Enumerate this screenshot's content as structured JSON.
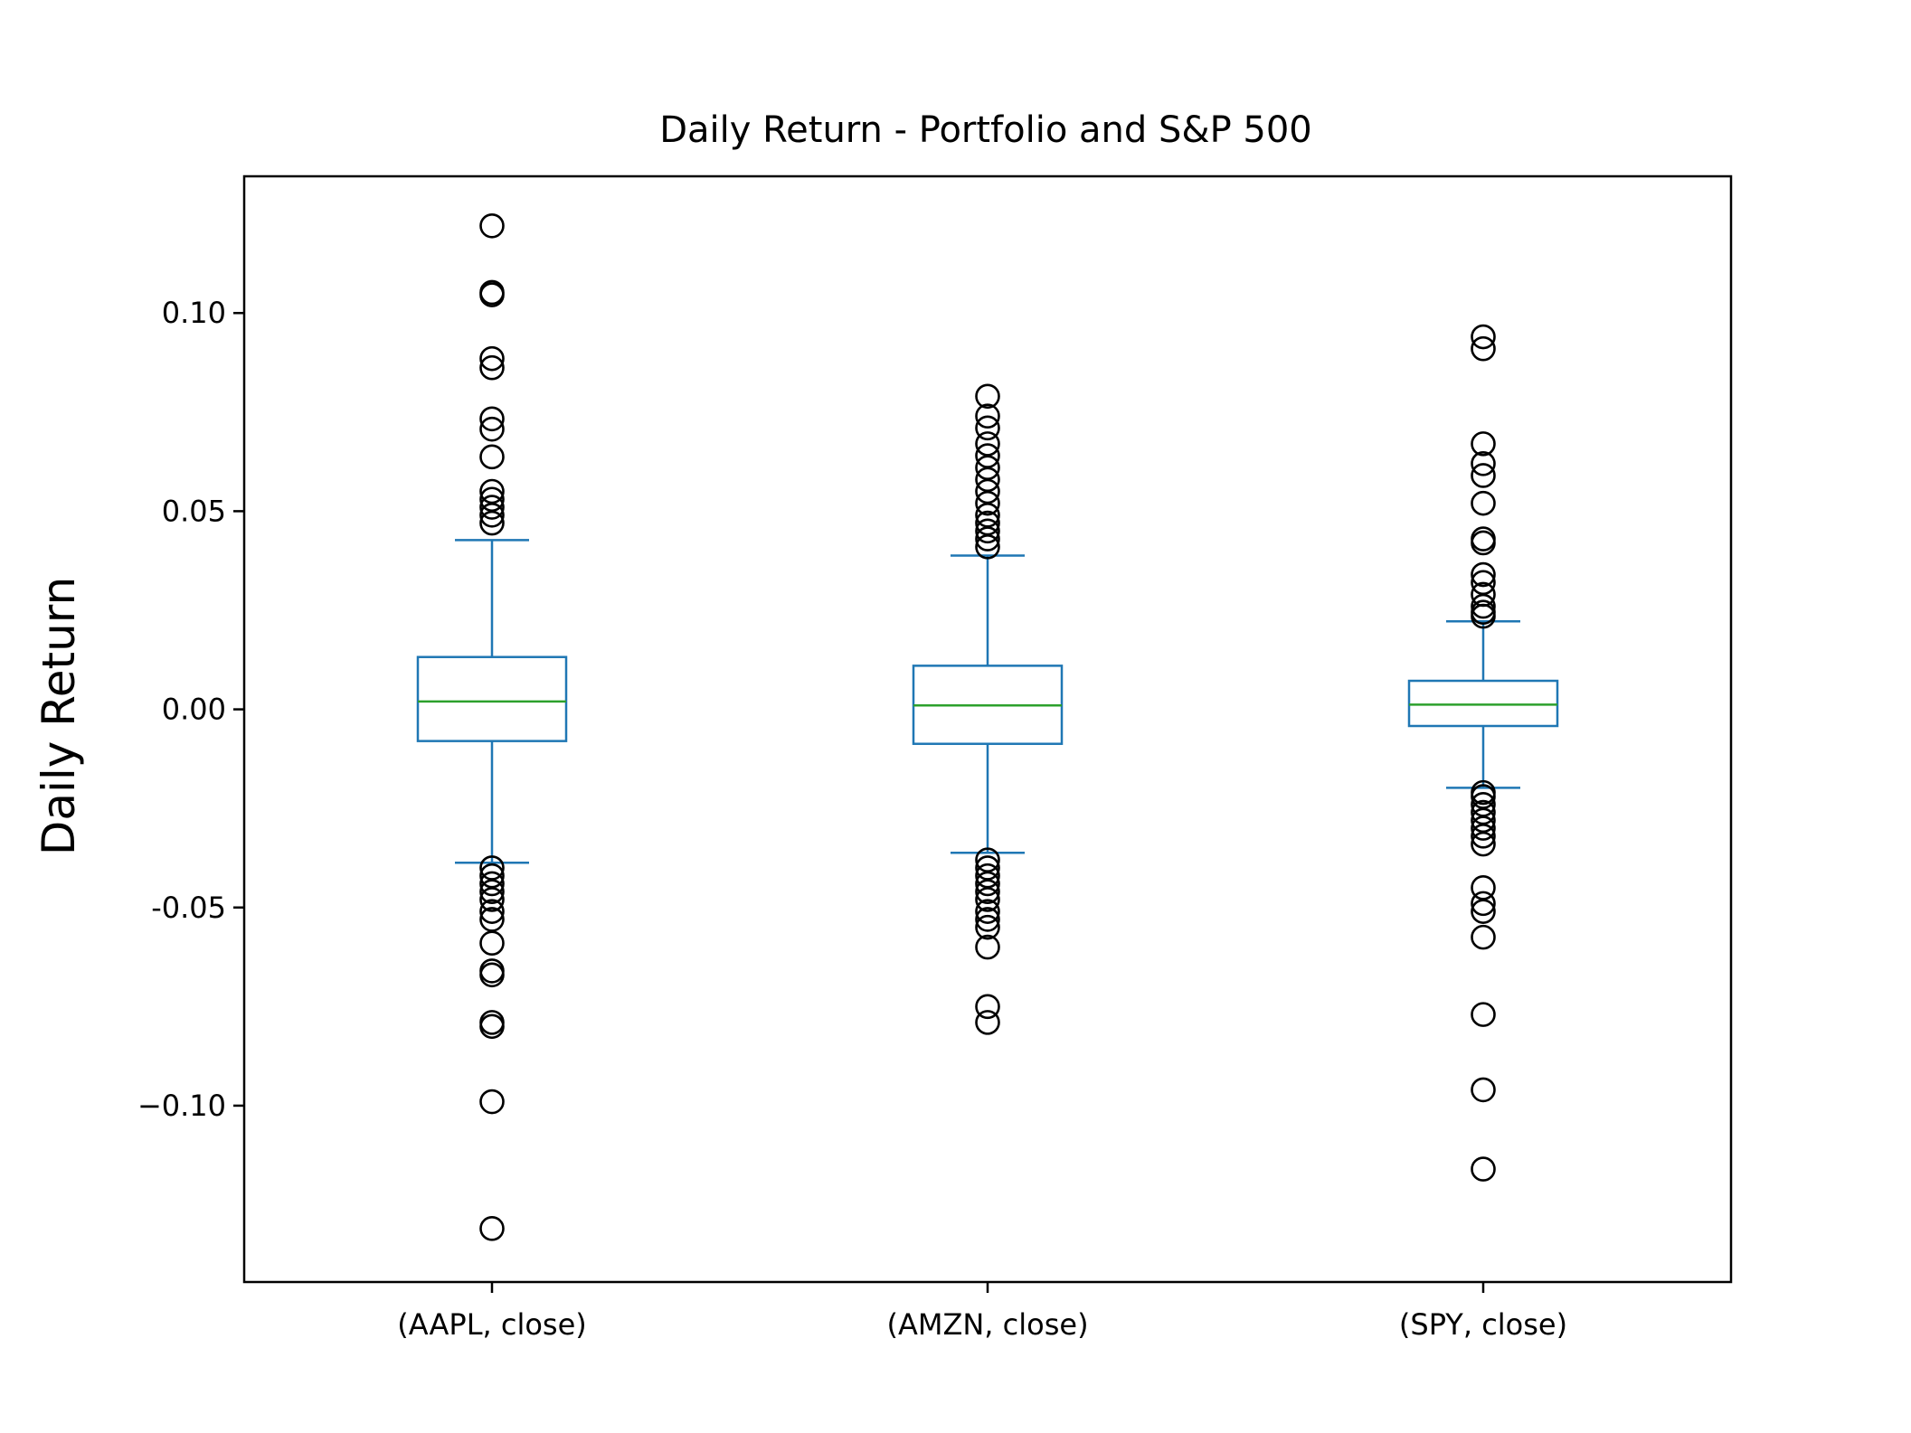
{
  "chart_data": {
    "type": "box",
    "title": "Daily Return - Portfolio and S&P 500",
    "xlabel": "",
    "ylabel": "Daily Return",
    "ylim": [
      -0.1445,
      0.1345
    ],
    "yticks": [
      0.1,
      0.05,
      0.0,
      -0.05,
      -0.1
    ],
    "ytick_labels": [
      "0.10",
      "0.05",
      "0.00",
      "-0.05",
      "−0.10"
    ],
    "grid": false,
    "colors": {
      "box": "#1f77b4",
      "median": "#2ca02c",
      "flier": "#000000"
    },
    "series": [
      {
        "name": "(AAPL, close)",
        "whisker_high": 0.0427,
        "q3": 0.0132,
        "median": 0.002,
        "q1": -0.008,
        "whisker_low": -0.0387,
        "fliers": [
          0.122,
          0.1052,
          0.1046,
          0.0885,
          0.0862,
          0.0733,
          0.0707,
          0.0637,
          0.055,
          0.053,
          0.051,
          0.049,
          0.047,
          -0.04,
          -0.042,
          -0.044,
          -0.046,
          -0.048,
          -0.051,
          -0.053,
          -0.059,
          -0.066,
          -0.067,
          -0.079,
          -0.08,
          -0.099,
          -0.131
        ]
      },
      {
        "name": "(AMZN, close)",
        "whisker_high": 0.0388,
        "q3": 0.011,
        "median": 0.001,
        "q1": -0.0087,
        "whisker_low": -0.0362,
        "fliers": [
          0.079,
          0.074,
          0.071,
          0.067,
          0.064,
          0.061,
          0.058,
          0.055,
          0.052,
          0.049,
          0.047,
          0.045,
          0.043,
          0.041,
          -0.038,
          -0.04,
          -0.042,
          -0.044,
          -0.046,
          -0.048,
          -0.051,
          -0.053,
          -0.055,
          -0.06,
          -0.075,
          -0.079
        ]
      },
      {
        "name": "(SPY, close)",
        "whisker_high": 0.0222,
        "q3": 0.0072,
        "median": 0.0012,
        "q1": -0.0042,
        "whisker_low": -0.0198,
        "fliers": [
          0.094,
          0.091,
          0.067,
          0.062,
          0.059,
          0.052,
          0.043,
          0.042,
          0.034,
          0.032,
          0.029,
          0.026,
          0.0245,
          0.0235,
          -0.021,
          -0.022,
          -0.024,
          -0.026,
          -0.028,
          -0.03,
          -0.032,
          -0.034,
          -0.045,
          -0.049,
          -0.051,
          -0.0575,
          -0.077,
          -0.096,
          -0.116
        ]
      }
    ]
  }
}
